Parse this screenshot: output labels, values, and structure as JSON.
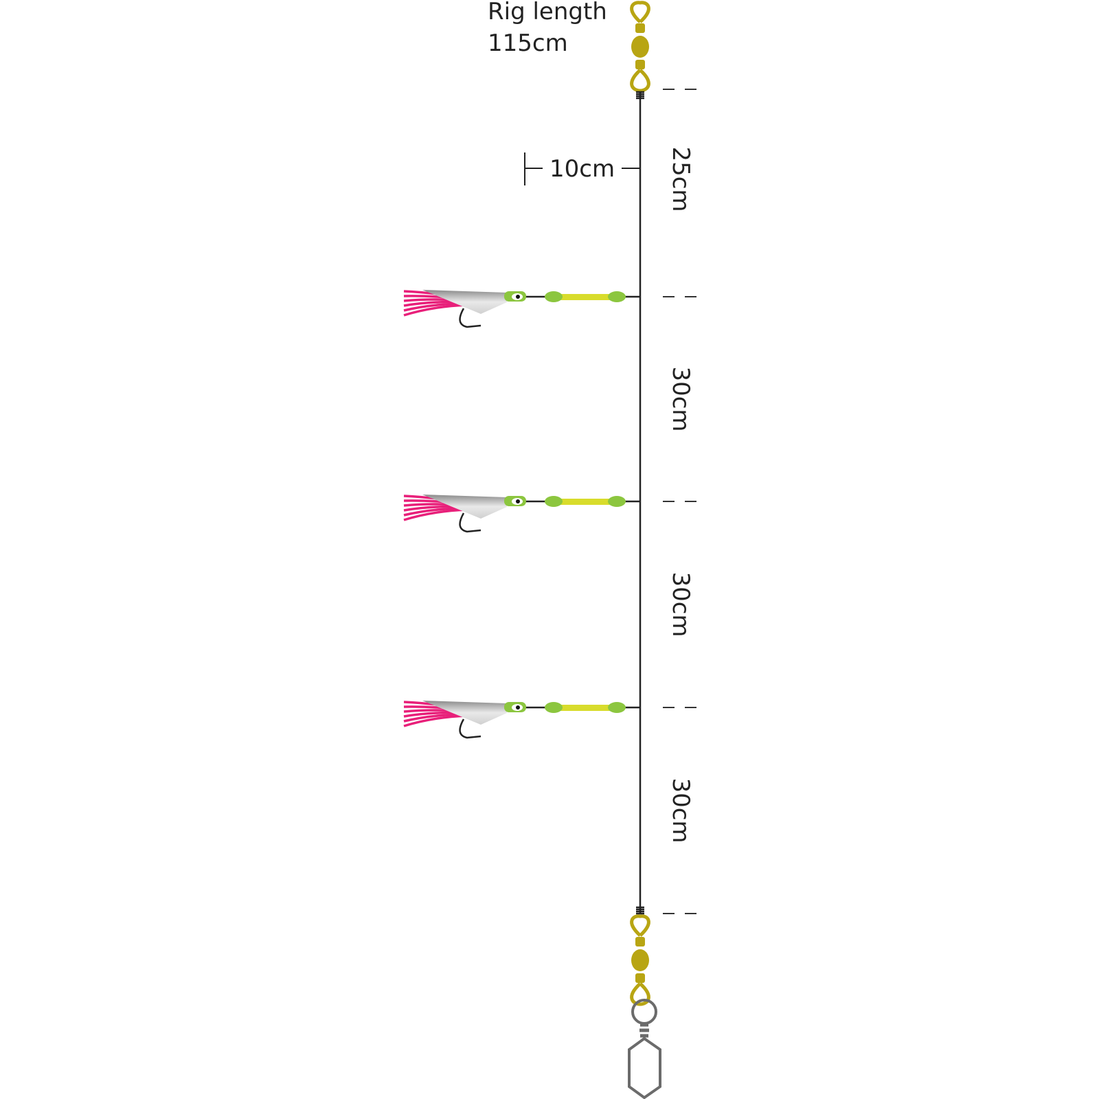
{
  "title": {
    "line1": "Rig length",
    "line2": "115cm"
  },
  "dropper_length": "10cm",
  "segments": [
    "25cm",
    "30cm",
    "30cm",
    "30cm"
  ],
  "hook_count": 3,
  "colors": {
    "line": "#222222",
    "swivel": "#b8a513",
    "snap": "#6b6b6b",
    "skirt": "#e8207a",
    "bead": "#8cc63f",
    "tube": "#d8dc2c",
    "body": "#cfcfcf"
  },
  "icons": [
    "top-swivel-icon",
    "bottom-swivel-icon",
    "snap-clip-icon",
    "lure-icon"
  ]
}
